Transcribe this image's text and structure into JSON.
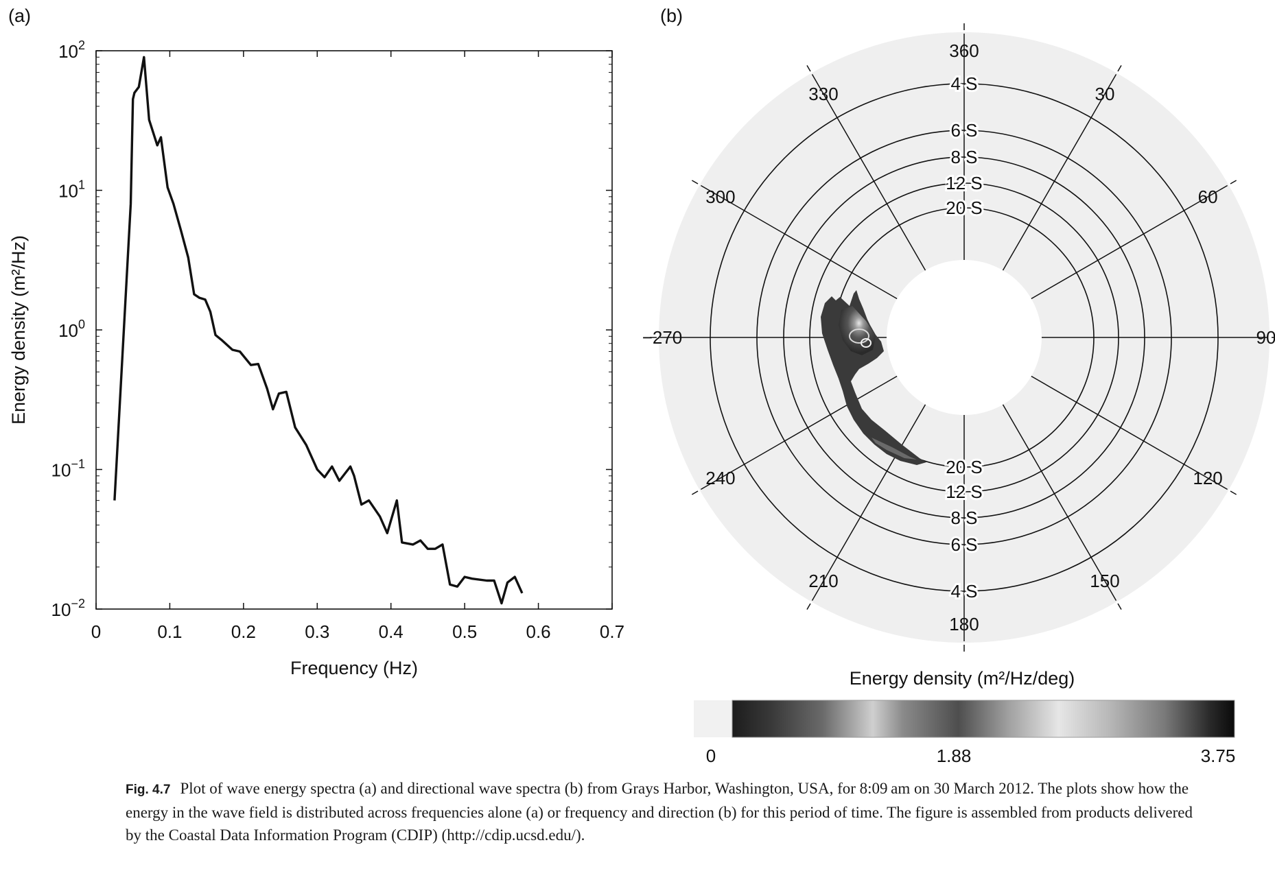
{
  "panels": {
    "a": {
      "label": "(a)"
    },
    "b": {
      "label": "(b)"
    }
  },
  "chart_data": [
    {
      "type": "line",
      "panel": "(a)",
      "xlabel": "Frequency (Hz)",
      "ylabel": "Energy density (m²/Hz)",
      "xlim": [
        0,
        0.7
      ],
      "ylim": [
        0.01,
        100
      ],
      "yscale": "log",
      "xticks": [
        "0",
        "0.1",
        "0.2",
        "0.3",
        "0.4",
        "0.5",
        "0.6",
        "0.7"
      ],
      "yticks": [
        {
          "base": "10",
          "exp": "2"
        },
        {
          "base": "10",
          "exp": "1"
        },
        {
          "base": "10",
          "exp": "0"
        },
        {
          "base": "10",
          "exp": "−1"
        },
        {
          "base": "10",
          "exp": "−2"
        }
      ],
      "grid": false,
      "series": [
        {
          "x": [
            0.025,
            0.047,
            0.05,
            0.052,
            0.058,
            0.065,
            0.072,
            0.083,
            0.088,
            0.097,
            0.105,
            0.115,
            0.125,
            0.133,
            0.14,
            0.148,
            0.155,
            0.162,
            0.17,
            0.185,
            0.195,
            0.21,
            0.22,
            0.232,
            0.24,
            0.248,
            0.258,
            0.27,
            0.285,
            0.3,
            0.31,
            0.32,
            0.33,
            0.345,
            0.35,
            0.36,
            0.37,
            0.385,
            0.395,
            0.408,
            0.415,
            0.43,
            0.44,
            0.45,
            0.46,
            0.47,
            0.48,
            0.49,
            0.5,
            0.51,
            0.53,
            0.54,
            0.55,
            0.558,
            0.568,
            0.578
          ],
          "y": [
            0.06,
            8,
            45,
            50,
            55,
            90,
            32,
            21,
            24,
            10.5,
            8,
            5.2,
            3.3,
            1.8,
            1.7,
            1.65,
            1.35,
            0.92,
            0.85,
            0.72,
            0.7,
            0.56,
            0.57,
            0.38,
            0.27,
            0.35,
            0.36,
            0.2,
            0.15,
            0.1,
            0.088,
            0.105,
            0.083,
            0.105,
            0.09,
            0.056,
            0.06,
            0.046,
            0.035,
            0.06,
            0.03,
            0.029,
            0.031,
            0.027,
            0.027,
            0.029,
            0.015,
            0.0145,
            0.017,
            0.0165,
            0.016,
            0.016,
            0.011,
            0.0155,
            0.017,
            0.013
          ]
        }
      ]
    },
    {
      "type": "polar",
      "panel": "(b)",
      "direction_labels": [
        "360",
        "30",
        "60",
        "90",
        "120",
        "150",
        "180",
        "210",
        "240",
        "−270",
        "300",
        "330"
      ],
      "period_rings_top": [
        "4 S",
        "6 S",
        "8 S",
        "12 S",
        "20 S"
      ],
      "period_rings_bottom": [
        "20 S",
        "12 S",
        "8 S",
        "6 S",
        "4 S"
      ],
      "peak": {
        "direction_deg": 275,
        "period_s": "12–20",
        "value_max": 3.75
      },
      "colorbar": {
        "title": "Energy density (m²/Hz/deg)",
        "range": [
          0,
          3.75
        ],
        "ticks": [
          "0",
          "1.88",
          "3.75"
        ]
      }
    }
  ],
  "caption": {
    "label": "Fig. 4.7",
    "text": "Plot of wave energy spectra (a) and directional wave spectra (b) from Grays Harbor, Washington, USA, for 8:09 am on 30 March 2012. The plots show how the energy in the wave field is distributed across frequencies alone (a) or frequency and direction (b) for this period of time. The figure is assembled from products delivered by the Coastal Data Information Program (CDIP) (http://cdip.ucsd.edu/)."
  }
}
